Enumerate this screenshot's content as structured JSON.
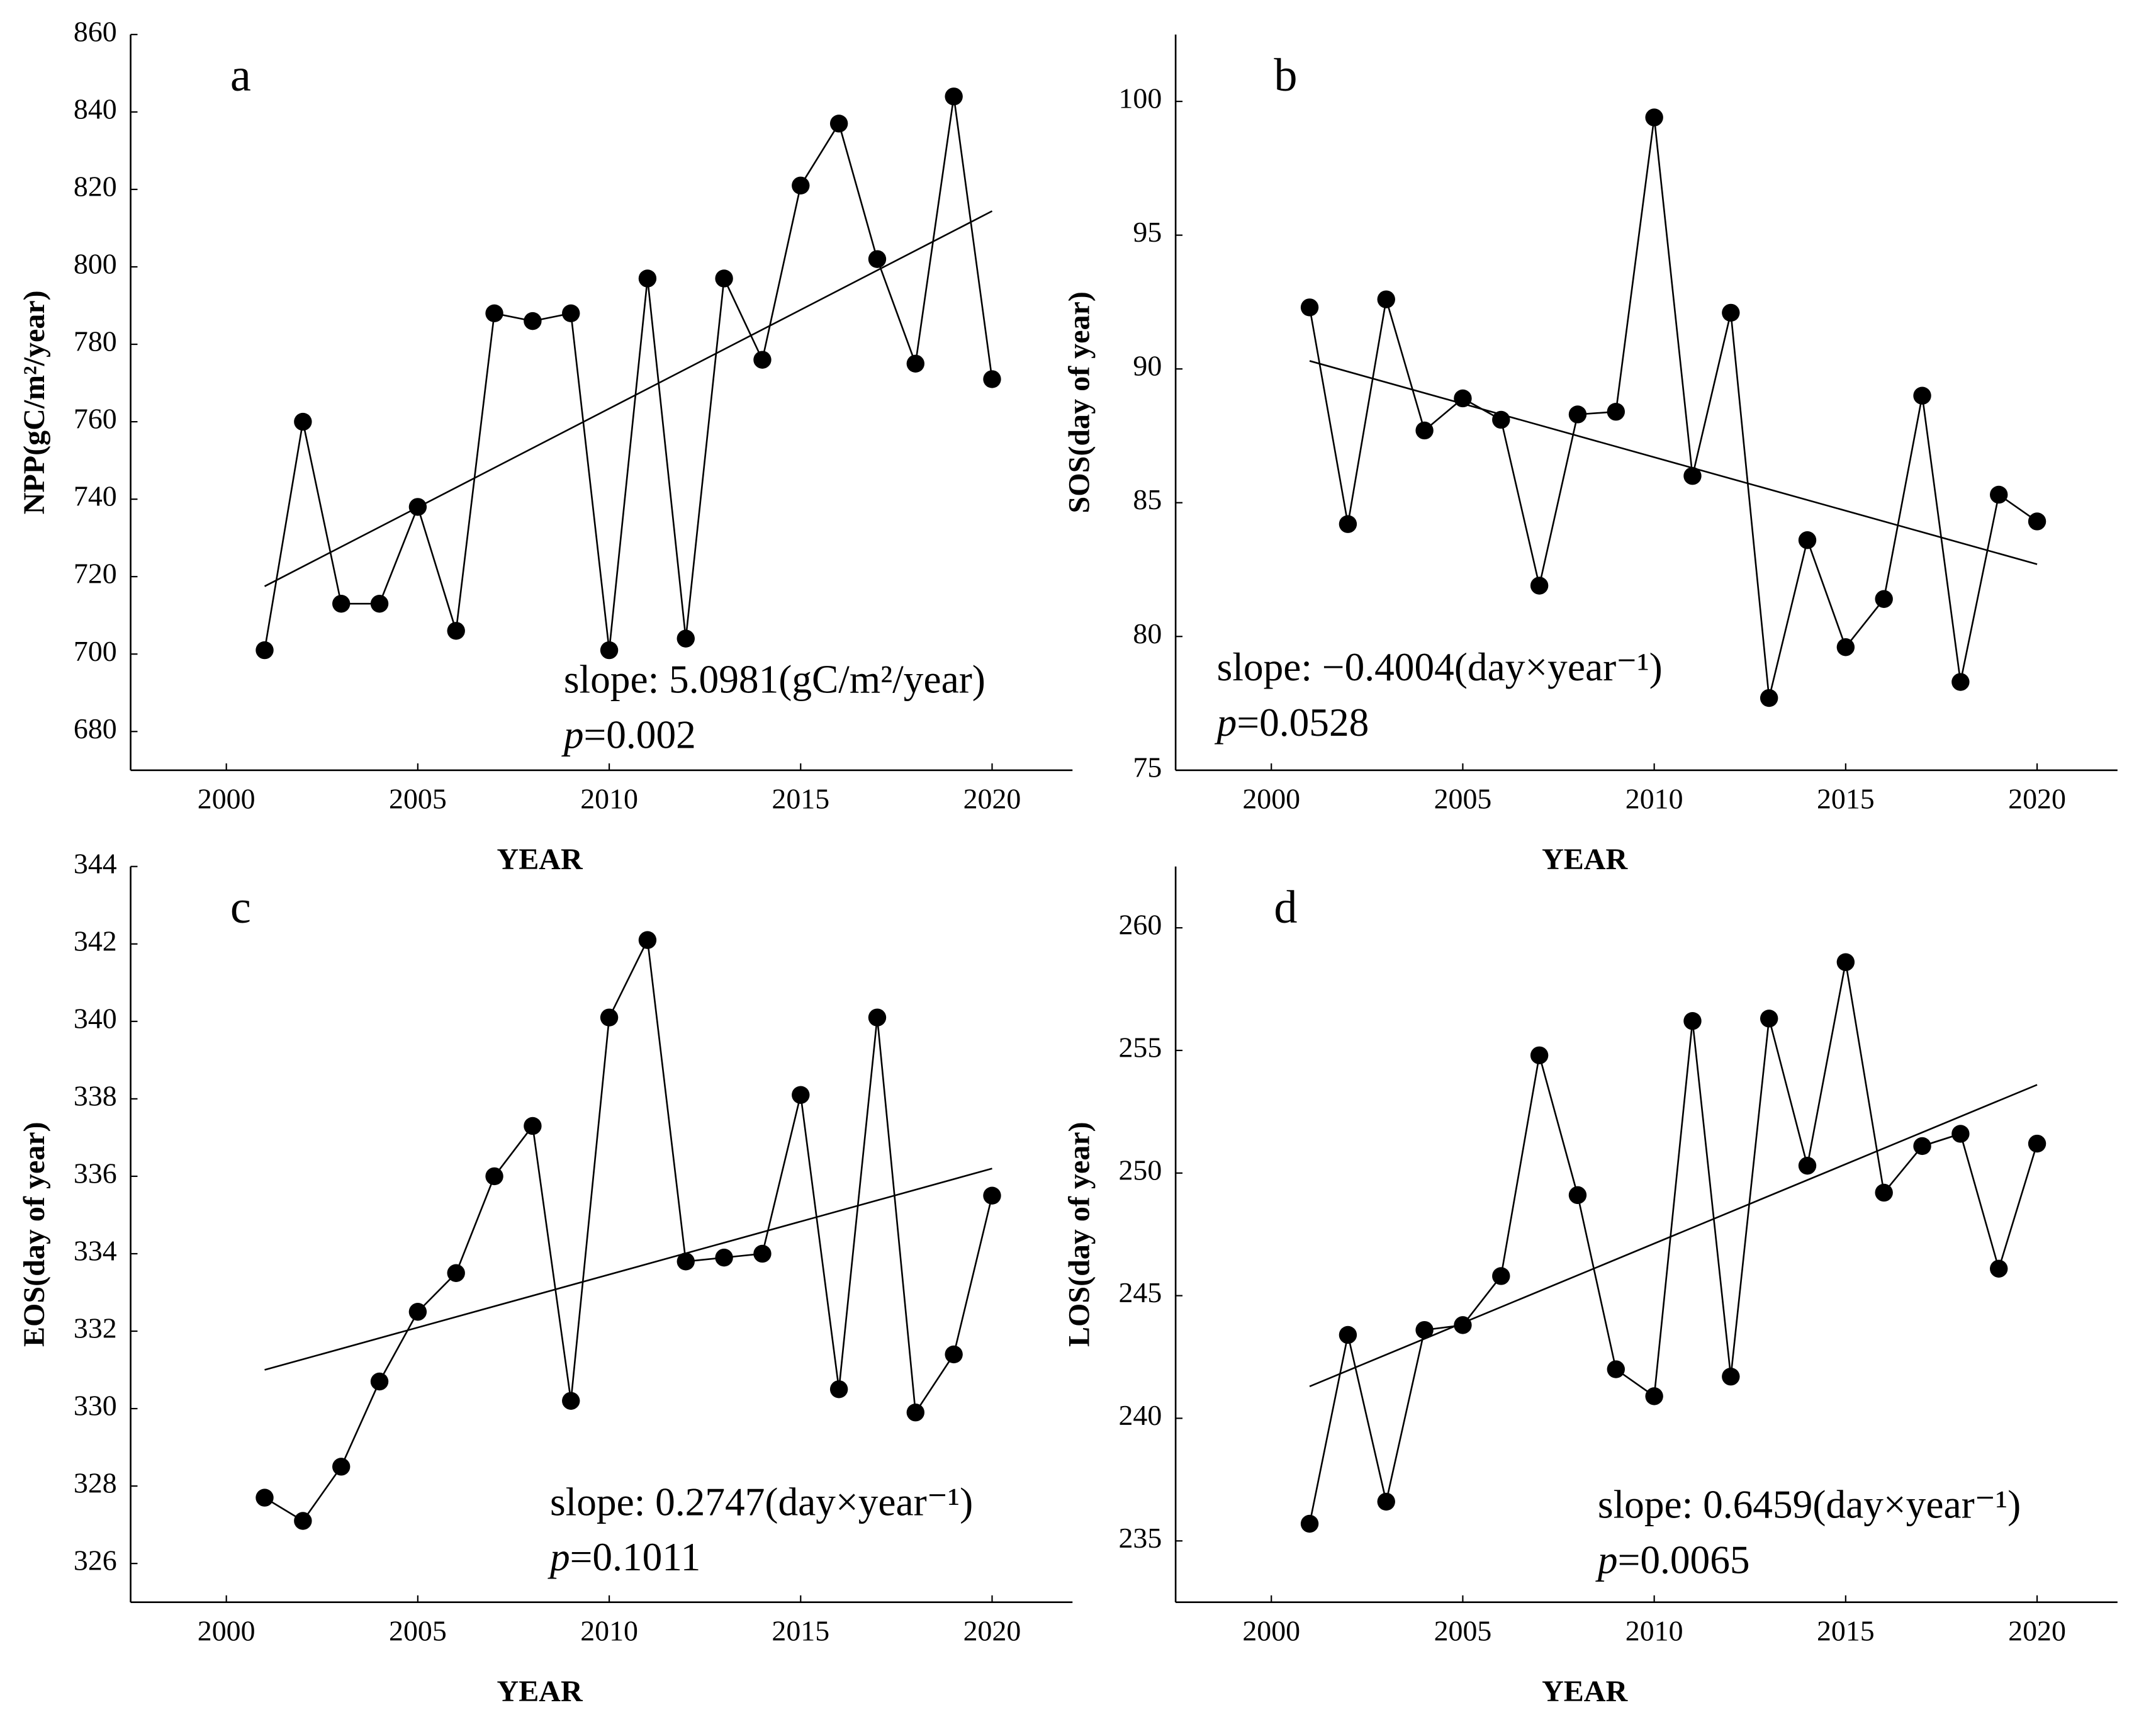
{
  "chart_data": [
    {
      "type": "line",
      "letter": "a",
      "xlabel": "YEAR",
      "ylabel": "NPP(gC/m²/year)",
      "slope": "slope: 5.0981(gC/m²/year)",
      "p_symbol": "p",
      "p_value": "=0.002",
      "x": [
        2001,
        2002,
        2003,
        2004,
        2005,
        2006,
        2007,
        2008,
        2009,
        2010,
        2011,
        2012,
        2013,
        2014,
        2015,
        2016,
        2017,
        2018,
        2019,
        2020
      ],
      "series": [
        {
          "color": "#000000",
          "values": [
            701,
            760,
            713,
            713,
            738,
            706,
            788,
            786,
            788,
            701,
            797,
            704,
            797,
            776,
            821,
            837,
            802,
            775,
            844,
            771
          ]
        }
      ],
      "trend": {
        "x": [
          2001,
          2020
        ],
        "values": [
          717.5,
          814.4
        ]
      },
      "xlim": [
        1997.5,
        2022.1
      ],
      "ylim": [
        670,
        860
      ],
      "xticks": [
        2000,
        2005,
        2010,
        2015,
        2020
      ],
      "yticks": [
        680,
        700,
        720,
        740,
        760,
        780,
        800,
        820,
        840,
        860
      ]
    },
    {
      "type": "line",
      "letter": "b",
      "xlabel": "YEAR",
      "ylabel": "SOS(day of year)",
      "slope": "slope: −0.4004(day×year⁻¹)",
      "p_symbol": "p",
      "p_value": "=0.0528",
      "x": [
        2001,
        2002,
        2003,
        2004,
        2005,
        2006,
        2007,
        2008,
        2009,
        2010,
        2011,
        2012,
        2013,
        2014,
        2015,
        2016,
        2017,
        2018,
        2019,
        2020
      ],
      "series": [
        {
          "color": "#000000",
          "values": [
            92.3,
            84.2,
            92.6,
            87.7,
            88.9,
            88.1,
            81.9,
            88.3,
            88.4,
            99.4,
            86.0,
            92.1,
            77.7,
            83.6,
            79.6,
            81.4,
            89.0,
            78.3,
            85.3,
            84.3
          ]
        }
      ],
      "trend": {
        "x": [
          2001,
          2020
        ],
        "values": [
          90.3,
          82.7
        ]
      },
      "xlim": [
        1997.5,
        2022.1
      ],
      "ylim": [
        75,
        102.5
      ],
      "xticks": [
        2000,
        2005,
        2010,
        2015,
        2020
      ],
      "yticks": [
        75,
        80,
        85,
        90,
        95,
        100
      ]
    },
    {
      "type": "line",
      "letter": "c",
      "xlabel": "YEAR",
      "ylabel": "EOS(day of year)",
      "slope": "slope: 0.2747(day×year⁻¹)",
      "p_symbol": "p",
      "p_value": "=0.1011",
      "x": [
        2001,
        2002,
        2003,
        2004,
        2005,
        2006,
        2007,
        2008,
        2009,
        2010,
        2011,
        2012,
        2013,
        2014,
        2015,
        2016,
        2017,
        2018,
        2019,
        2020
      ],
      "series": [
        {
          "color": "#000000",
          "values": [
            327.7,
            327.1,
            328.5,
            330.7,
            332.5,
            333.5,
            336.0,
            337.3,
            330.2,
            340.1,
            342.1,
            333.8,
            333.9,
            334.0,
            338.1,
            330.5,
            340.1,
            329.9,
            331.4,
            335.5
          ]
        }
      ],
      "trend": {
        "x": [
          2001,
          2020
        ],
        "values": [
          331.0,
          336.2
        ]
      },
      "xlim": [
        1997.5,
        2022.1
      ],
      "ylim": [
        325,
        344
      ],
      "xticks": [
        2000,
        2005,
        2010,
        2015,
        2020
      ],
      "yticks": [
        326,
        328,
        330,
        332,
        334,
        336,
        338,
        340,
        342,
        344
      ]
    },
    {
      "type": "line",
      "letter": "d",
      "xlabel": "YEAR",
      "ylabel": "LOS(day of year)",
      "slope": "slope: 0.6459(day×year⁻¹)",
      "p_symbol": "p",
      "p_value": "=0.0065",
      "x": [
        2001,
        2002,
        2003,
        2004,
        2005,
        2006,
        2007,
        2008,
        2009,
        2010,
        2011,
        2012,
        2013,
        2014,
        2015,
        2016,
        2017,
        2018,
        2019,
        2020
      ],
      "series": [
        {
          "color": "#000000",
          "values": [
            235.7,
            243.4,
            236.6,
            243.6,
            243.8,
            245.8,
            254.8,
            249.1,
            242.0,
            240.9,
            256.2,
            241.7,
            256.3,
            250.3,
            258.6,
            249.2,
            251.1,
            251.6,
            246.1,
            251.2
          ]
        }
      ],
      "trend": {
        "x": [
          2001,
          2020
        ],
        "values": [
          241.3,
          253.6
        ]
      },
      "xlim": [
        1997.5,
        2022.1
      ],
      "ylim": [
        232.5,
        262.5
      ],
      "xticks": [
        2000,
        2005,
        2010,
        2015,
        2020
      ],
      "yticks": [
        235,
        240,
        245,
        250,
        255,
        260
      ]
    }
  ]
}
